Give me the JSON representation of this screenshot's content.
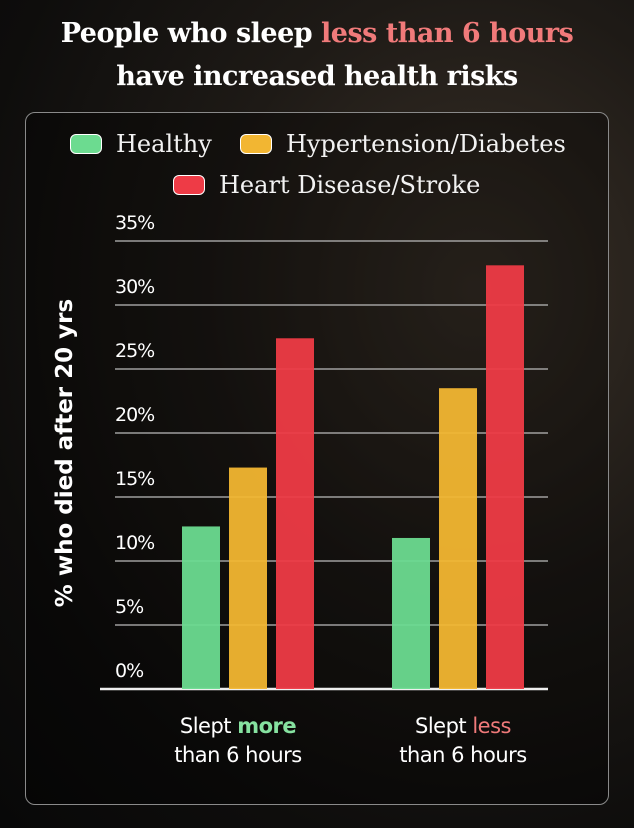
{
  "title": {
    "line1_prefix": "People who sleep ",
    "line1_highlight": "less than 6 hours",
    "line2": "have increased health risks"
  },
  "colors": {
    "healthy": "#6cdb90",
    "hypertension": "#f2b632",
    "heart": "#ee3b46",
    "highlight": "#f07a7a",
    "green_text": "#86e2a0"
  },
  "chart_data": {
    "type": "bar",
    "title": "People who sleep less than 6 hours have increased health risks",
    "ylabel": "% who died after 20 yrs",
    "xlabel": "",
    "ylim": [
      0,
      35
    ],
    "yticks": [
      "0%",
      "5%",
      "10%",
      "15%",
      "20%",
      "25%",
      "30%",
      "35%"
    ],
    "ytick_values": [
      0,
      5,
      10,
      15,
      20,
      25,
      30,
      35
    ],
    "grid": true,
    "legend": "top",
    "categories": [
      "Slept more than 6 hours",
      "Slept less than 6 hours"
    ],
    "category_labels": [
      {
        "pre": "Slept ",
        "em": "more",
        "post": "than 6 hours"
      },
      {
        "pre": "Slept ",
        "em": "less",
        "post": "than 6 hours"
      }
    ],
    "series": [
      {
        "name": "Healthy",
        "values": [
          12.7,
          11.8
        ]
      },
      {
        "name": "Hypertension/Diabetes",
        "values": [
          17.3,
          23.5
        ]
      },
      {
        "name": "Heart Disease/Stroke",
        "values": [
          27.4,
          33.1
        ]
      }
    ]
  }
}
